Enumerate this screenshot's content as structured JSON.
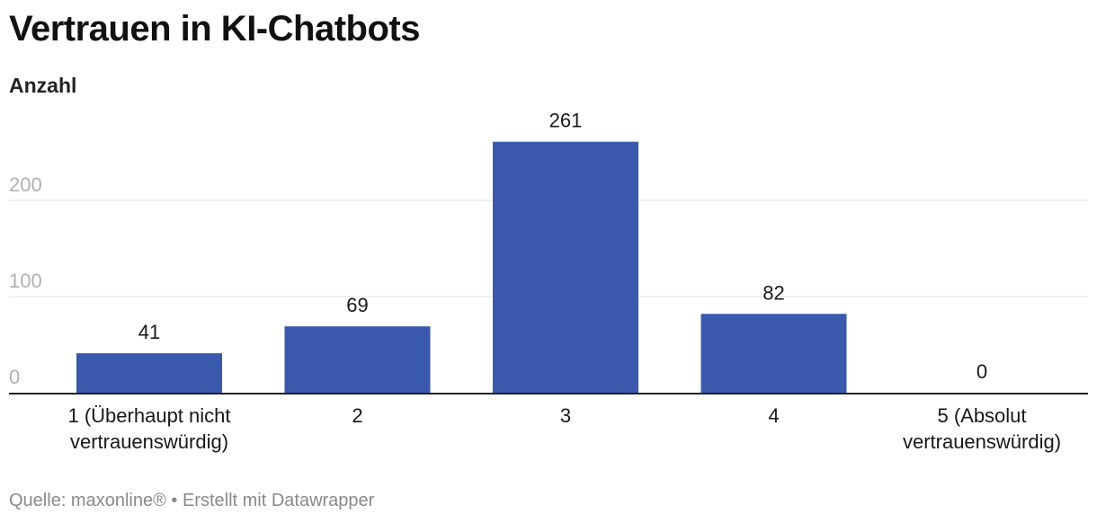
{
  "header": {
    "title": "Vertrauen in KI-Chatbots",
    "ylabel": "Anzahl"
  },
  "footer": {
    "source": "Quelle: maxonline® • Erstellt mit Datawrapper"
  },
  "colors": {
    "bar": "#3a59ad",
    "grid": "#e2e2e2",
    "tick": "#b0b0b0",
    "axis": "#222222",
    "text": "#181818"
  },
  "chart_data": {
    "type": "bar",
    "title": "Vertrauen in KI-Chatbots",
    "xlabel": "",
    "ylabel": "Anzahl",
    "categories": [
      [
        "1 (Überhaupt nicht",
        "vertrauenswürdig)"
      ],
      [
        "2"
      ],
      [
        "3"
      ],
      [
        "4"
      ],
      [
        "5 (Absolut",
        "vertrauenswürdig)"
      ]
    ],
    "values": [
      41,
      69,
      261,
      82,
      0
    ],
    "ylim": [
      0,
      261
    ],
    "yticks": [
      0,
      100,
      200
    ],
    "grid": true,
    "legend": "none",
    "data_labels": true
  }
}
